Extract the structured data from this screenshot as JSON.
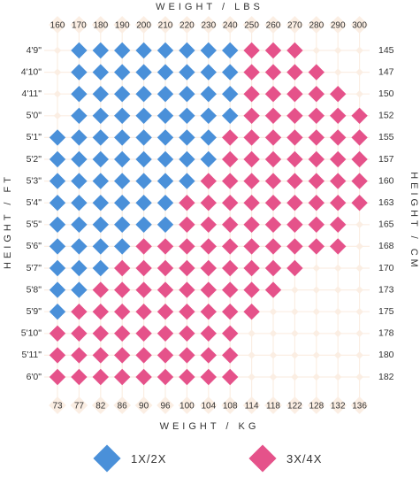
{
  "chart_data": {
    "type": "heatmap",
    "title": "",
    "top_axis_title": "WEIGHT / LBS",
    "bottom_axis_title": "WEIGHT / KG",
    "left_axis_title": "HEIGHT / FT",
    "right_axis_title": "HEIGHT / CM",
    "weight_lbs": [
      "160",
      "170",
      "180",
      "190",
      "200",
      "210",
      "220",
      "230",
      "240",
      "250",
      "260",
      "270",
      "280",
      "290",
      "300"
    ],
    "weight_kg": [
      "73",
      "77",
      "82",
      "86",
      "90",
      "96",
      "100",
      "104",
      "108",
      "114",
      "118",
      "122",
      "128",
      "132",
      "136"
    ],
    "height_ft": [
      "4'9\"",
      "4'10\"",
      "4'11\"",
      "5'0\"",
      "5'1\"",
      "5'2\"",
      "5'3\"",
      "5'4\"",
      "5'5\"",
      "5'6\"",
      "5'7\"",
      "5'8\"",
      "5'9\"",
      "5'10\"",
      "5'11\"",
      "6'0\""
    ],
    "height_cm": [
      "145",
      "147",
      "150",
      "152",
      "155",
      "157",
      "160",
      "163",
      "165",
      "168",
      "170",
      "173",
      "175",
      "178",
      "180",
      "182"
    ],
    "cell_codes": [
      "011111111222000",
      "011111111222200",
      "011111111222220",
      "011111111222222",
      "111111112222222",
      "111111112222222",
      "111111122222222",
      "111111222222222",
      "111111222222220",
      "111122222222220",
      "111222222222000",
      "112222222220000",
      "122222222200000",
      "222222222000000",
      "222222222000000",
      "222222222000000"
    ],
    "legend": [
      {
        "code": 1,
        "label": "1X/2X",
        "color": "#4a90d9"
      },
      {
        "code": 2,
        "label": "3X/4X",
        "color": "#e5528a"
      }
    ],
    "empty_color": "#fbeee3"
  }
}
